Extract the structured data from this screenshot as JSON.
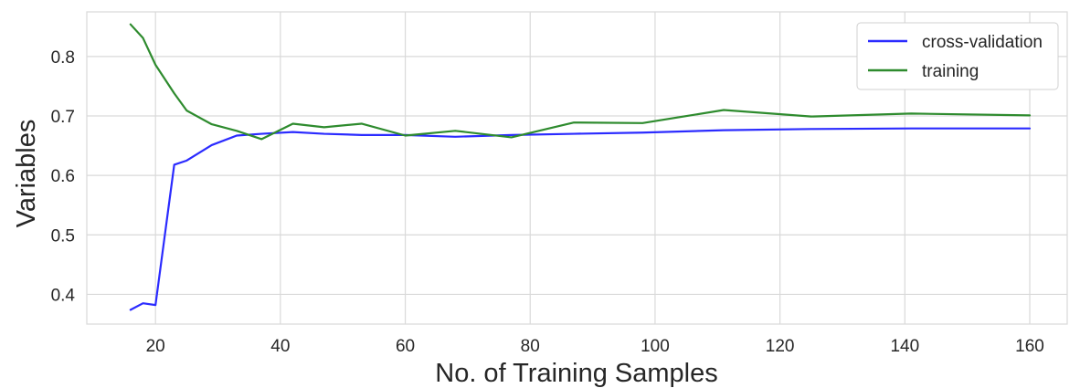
{
  "chart_data": {
    "type": "line",
    "title": "",
    "xlabel": "No. of Training Samples",
    "ylabel": "Variables",
    "xlim": [
      9,
      166
    ],
    "ylim": [
      0.35,
      0.875
    ],
    "xticks": [
      20,
      40,
      60,
      80,
      100,
      120,
      140,
      160
    ],
    "yticks": [
      0.4,
      0.5,
      0.6,
      0.7,
      0.8
    ],
    "xtick_labels": [
      "20",
      "40",
      "60",
      "80",
      "100",
      "120",
      "140",
      "160"
    ],
    "ytick_labels": [
      "0.4",
      "0.5",
      "0.6",
      "0.7",
      "0.8"
    ],
    "grid": true,
    "legend_position": "top-right",
    "series": [
      {
        "name": "cross-validation",
        "color": "#2b2bff",
        "x": [
          16,
          18,
          20,
          23,
          25,
          29,
          33,
          37,
          42,
          47,
          53,
          60,
          68,
          77,
          87,
          98,
          111,
          125,
          141,
          160
        ],
        "y": [
          0.374,
          0.385,
          0.382,
          0.618,
          0.625,
          0.651,
          0.667,
          0.67,
          0.673,
          0.67,
          0.668,
          0.668,
          0.665,
          0.668,
          0.67,
          0.672,
          0.676,
          0.678,
          0.679,
          0.679
        ]
      },
      {
        "name": "training",
        "color": "#2e8b2e",
        "x": [
          16,
          18,
          20,
          23,
          25,
          29,
          33,
          37,
          42,
          47,
          53,
          60,
          68,
          77,
          87,
          98,
          111,
          125,
          141,
          160
        ],
        "y": [
          0.854,
          0.831,
          0.786,
          0.738,
          0.709,
          0.686,
          0.675,
          0.661,
          0.687,
          0.681,
          0.687,
          0.667,
          0.675,
          0.664,
          0.689,
          0.688,
          0.71,
          0.699,
          0.704,
          0.701
        ]
      }
    ]
  }
}
